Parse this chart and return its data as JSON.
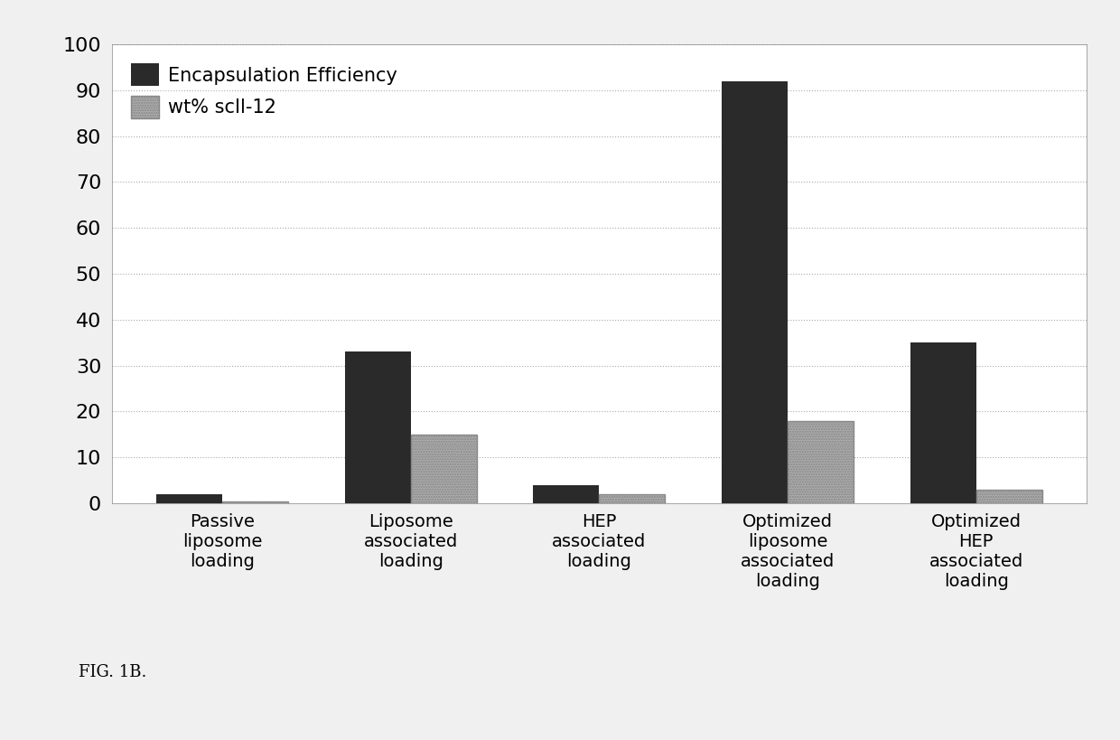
{
  "categories": [
    "Passive\nliposome\nloading",
    "Liposome\nassociated\nloading",
    "HEP\nassociated\nloading",
    "Optimized\nliposome\nassociated\nloading",
    "Optimized\nHEP\nassociated\nloading"
  ],
  "encapsulation_efficiency": [
    2,
    33,
    4,
    92,
    35
  ],
  "wt_percent": [
    0.3,
    15,
    2,
    18,
    3
  ],
  "bar_color_ee": "#2a2a2a",
  "bar_color_wt": "#aaaaaa",
  "ylim": [
    0,
    100
  ],
  "yticks": [
    0,
    10,
    20,
    30,
    40,
    50,
    60,
    70,
    80,
    90,
    100
  ],
  "legend_ee": "Encapsulation Efficiency",
  "legend_wt": "wt% scIl-12",
  "background_color": "#f0f0f0",
  "plot_area_color": "#ffffff",
  "fig_caption": "FIG. 1B.",
  "bar_width": 0.35,
  "grid_color": "#aaaaaa",
  "grid_linestyle": ":",
  "tick_fontsize": 16,
  "legend_fontsize": 15,
  "caption_fontsize": 13,
  "xlabel_fontsize": 14
}
